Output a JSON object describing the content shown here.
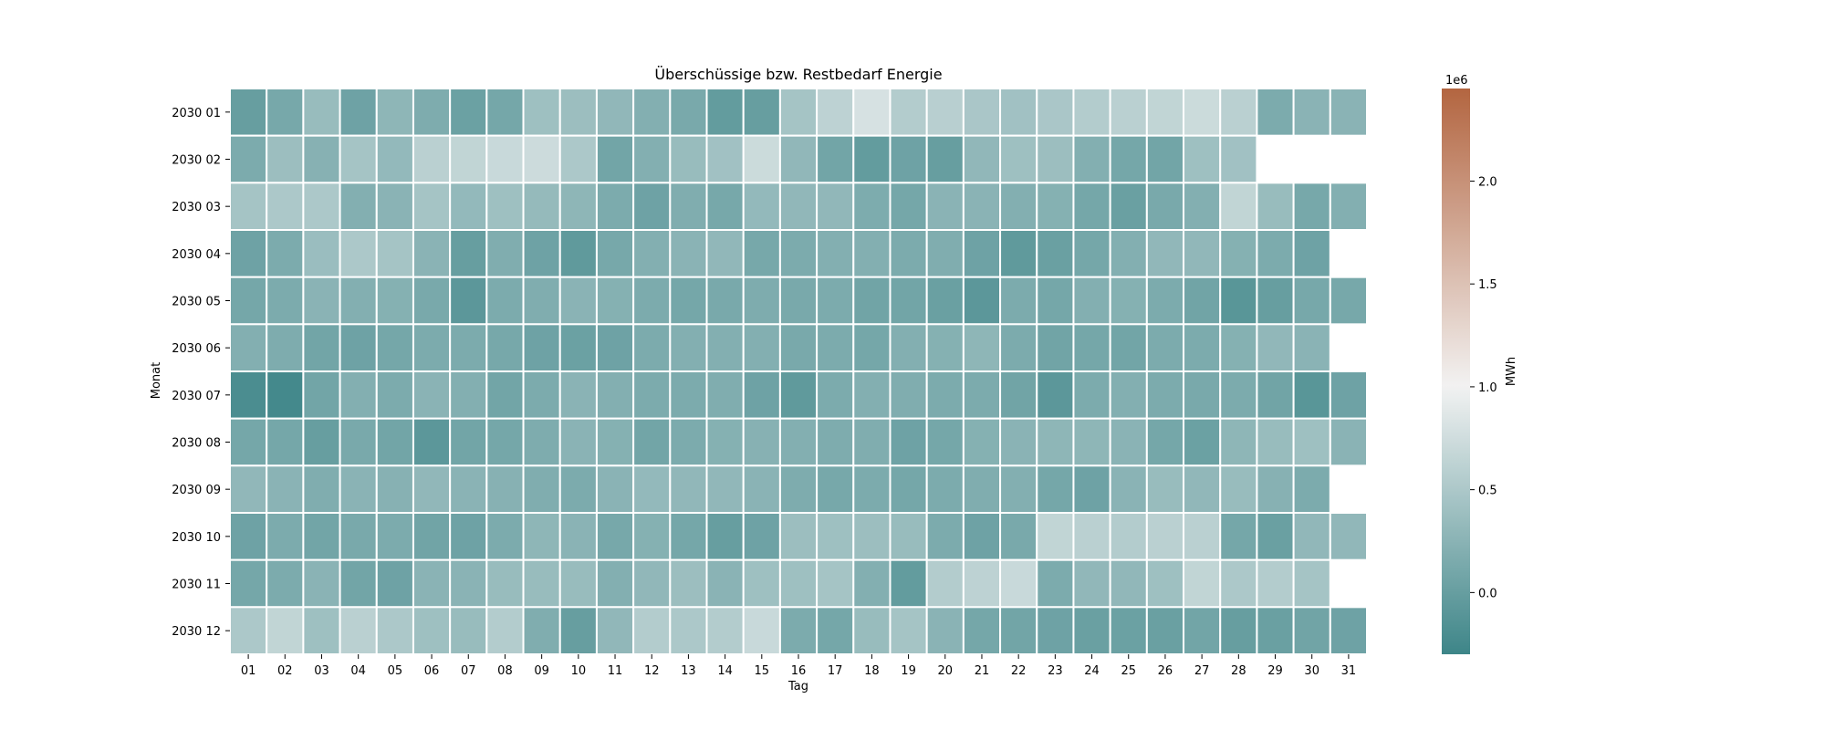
{
  "chart_data": {
    "type": "heatmap",
    "title": "Überschüssige bzw. Restbedarf Energie",
    "xlabel": "Tag",
    "ylabel": "Monat",
    "x_ticks": [
      "01",
      "02",
      "03",
      "04",
      "05",
      "06",
      "07",
      "08",
      "09",
      "10",
      "11",
      "12",
      "13",
      "14",
      "15",
      "16",
      "17",
      "18",
      "19",
      "20",
      "21",
      "22",
      "23",
      "24",
      "25",
      "26",
      "27",
      "28",
      "29",
      "30",
      "31"
    ],
    "y_ticks": [
      "2030 01",
      "2030 02",
      "2030 03",
      "2030 04",
      "2030 05",
      "2030 06",
      "2030 07",
      "2030 08",
      "2030 09",
      "2030 10",
      "2030 11",
      "2030 12"
    ],
    "colorbar": {
      "label": "MWh",
      "offset_text": "1e6",
      "range": [
        -300000,
        2450000
      ],
      "ticks": [
        0.0,
        0.5,
        1.0,
        1.5,
        2.0
      ],
      "tick_labels": [
        "0.0",
        "0.5",
        "1.0",
        "1.5",
        "2.0"
      ],
      "colors": {
        "low": "#3d8588",
        "mid": "#f2f2f2",
        "high": "#b36540"
      }
    },
    "values": [
      [
        0,
        120000,
        350000,
        50000,
        280000,
        170000,
        30000,
        100000,
        400000,
        380000,
        300000,
        200000,
        130000,
        -30000,
        0,
        450000,
        620000,
        800000,
        550000,
        580000,
        480000,
        420000,
        480000,
        550000,
        600000,
        650000,
        720000,
        600000,
        150000,
        250000,
        250000
      ],
      [
        150000,
        380000,
        230000,
        450000,
        320000,
        600000,
        650000,
        700000,
        730000,
        500000,
        80000,
        200000,
        350000,
        420000,
        720000,
        300000,
        80000,
        -30000,
        50000,
        0,
        300000,
        400000,
        380000,
        200000,
        100000,
        80000,
        400000,
        420000,
        null,
        null,
        null
      ],
      [
        450000,
        500000,
        500000,
        200000,
        250000,
        450000,
        320000,
        400000,
        330000,
        280000,
        150000,
        50000,
        180000,
        120000,
        320000,
        300000,
        300000,
        160000,
        100000,
        250000,
        250000,
        200000,
        220000,
        100000,
        20000,
        130000,
        200000,
        650000,
        350000,
        120000,
        200000
      ],
      [
        50000,
        150000,
        370000,
        500000,
        450000,
        250000,
        0,
        180000,
        50000,
        -50000,
        120000,
        200000,
        250000,
        300000,
        120000,
        150000,
        200000,
        200000,
        150000,
        180000,
        50000,
        -50000,
        20000,
        100000,
        200000,
        300000,
        300000,
        220000,
        150000,
        50000,
        null
      ],
      [
        100000,
        150000,
        250000,
        200000,
        220000,
        130000,
        -80000,
        150000,
        180000,
        250000,
        220000,
        150000,
        100000,
        130000,
        170000,
        130000,
        150000,
        70000,
        80000,
        20000,
        -80000,
        150000,
        100000,
        200000,
        220000,
        150000,
        70000,
        -100000,
        0,
        120000,
        120000
      ],
      [
        200000,
        170000,
        80000,
        50000,
        100000,
        150000,
        150000,
        120000,
        50000,
        30000,
        50000,
        150000,
        200000,
        200000,
        200000,
        130000,
        150000,
        100000,
        200000,
        220000,
        280000,
        150000,
        70000,
        100000,
        80000,
        150000,
        150000,
        220000,
        300000,
        250000,
        null
      ],
      [
        -200000,
        -250000,
        80000,
        200000,
        150000,
        250000,
        200000,
        80000,
        150000,
        250000,
        200000,
        150000,
        150000,
        180000,
        50000,
        -50000,
        150000,
        200000,
        180000,
        150000,
        150000,
        70000,
        -80000,
        150000,
        200000,
        150000,
        130000,
        150000,
        70000,
        -100000,
        50000
      ],
      [
        100000,
        100000,
        0,
        130000,
        80000,
        -80000,
        80000,
        100000,
        170000,
        250000,
        220000,
        80000,
        150000,
        220000,
        230000,
        200000,
        170000,
        180000,
        50000,
        100000,
        220000,
        250000,
        280000,
        280000,
        250000,
        100000,
        30000,
        280000,
        350000,
        400000,
        250000
      ],
      [
        300000,
        250000,
        180000,
        250000,
        230000,
        300000,
        250000,
        230000,
        180000,
        150000,
        250000,
        320000,
        300000,
        300000,
        250000,
        170000,
        120000,
        150000,
        100000,
        150000,
        180000,
        200000,
        100000,
        50000,
        250000,
        350000,
        300000,
        350000,
        230000,
        150000,
        null
      ],
      [
        50000,
        150000,
        80000,
        130000,
        150000,
        70000,
        50000,
        150000,
        280000,
        250000,
        120000,
        220000,
        100000,
        0,
        50000,
        380000,
        400000,
        380000,
        350000,
        150000,
        50000,
        130000,
        650000,
        600000,
        550000,
        600000,
        600000,
        100000,
        20000,
        300000,
        300000
      ],
      [
        100000,
        150000,
        250000,
        80000,
        50000,
        250000,
        250000,
        350000,
        350000,
        350000,
        200000,
        300000,
        380000,
        250000,
        400000,
        400000,
        450000,
        200000,
        -30000,
        550000,
        620000,
        700000,
        150000,
        300000,
        300000,
        400000,
        650000,
        500000,
        550000,
        450000,
        null
      ],
      [
        500000,
        650000,
        400000,
        600000,
        500000,
        400000,
        350000,
        550000,
        180000,
        0,
        300000,
        550000,
        500000,
        550000,
        700000,
        150000,
        100000,
        350000,
        450000,
        250000,
        100000,
        80000,
        50000,
        20000,
        30000,
        20000,
        80000,
        0,
        20000,
        70000,
        50000
      ]
    ]
  }
}
